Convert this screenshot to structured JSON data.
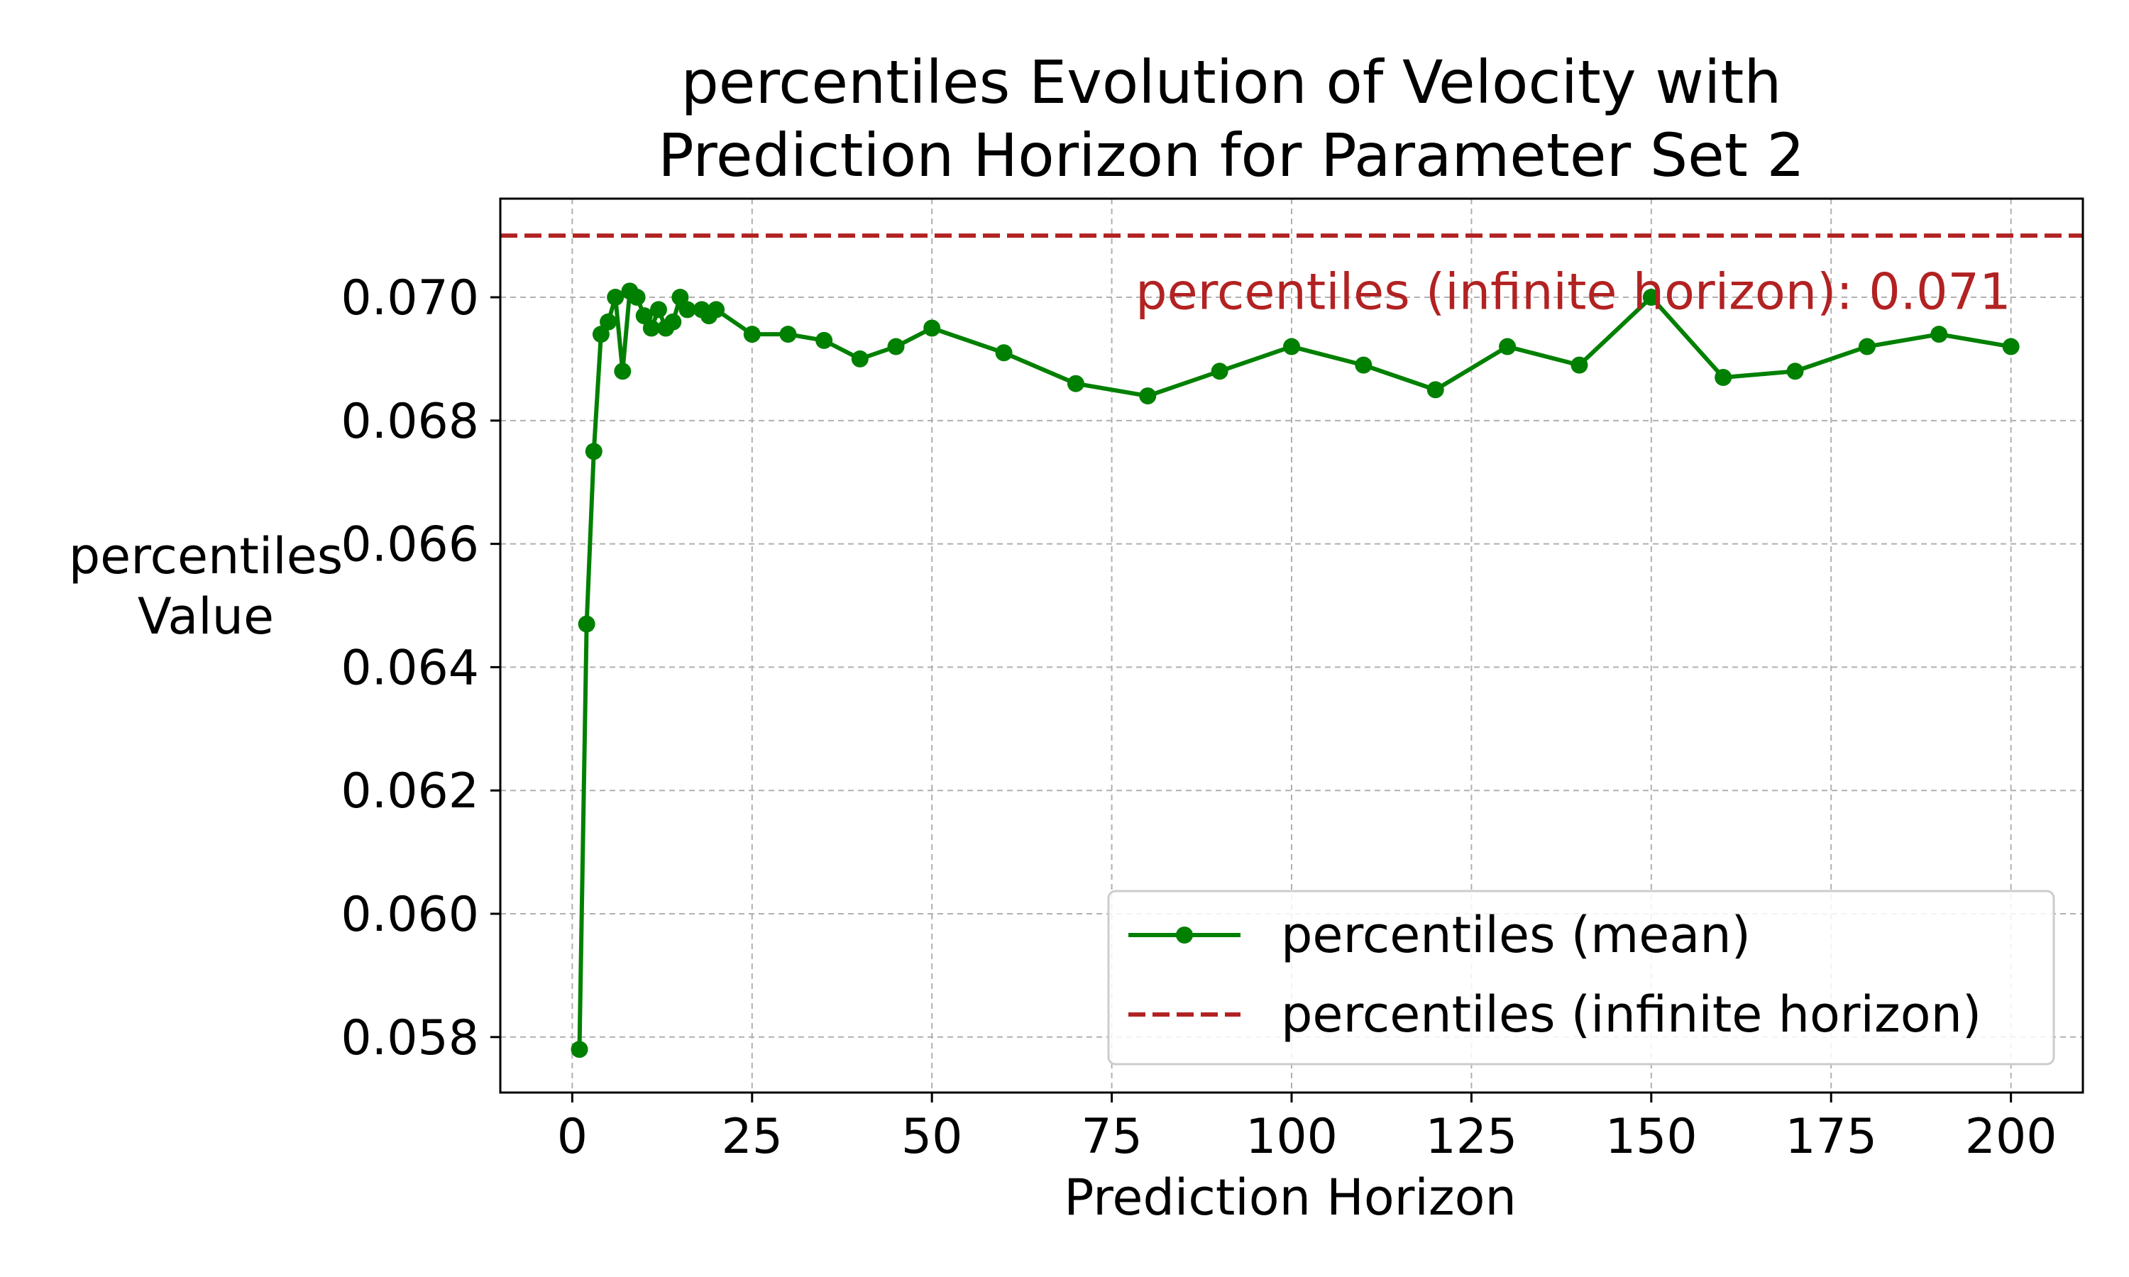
{
  "chart_data": {
    "type": "line",
    "title_lines": [
      "percentiles Evolution of Velocity with",
      "Prediction Horizon for Parameter Set 2"
    ],
    "xlabel": "Prediction Horizon",
    "ylabel_lines": [
      "percentiles",
      "Value"
    ],
    "xlim": [
      -10,
      210
    ],
    "ylim": [
      0.0571,
      0.0716
    ],
    "xticks": [
      0,
      25,
      50,
      75,
      100,
      125,
      150,
      175,
      200
    ],
    "xtick_labels": [
      "0",
      "25",
      "50",
      "75",
      "100",
      "125",
      "150",
      "175",
      "200"
    ],
    "yticks": [
      0.058,
      0.06,
      0.062,
      0.064,
      0.066,
      0.068,
      0.07
    ],
    "ytick_labels": [
      "0.058",
      "0.060",
      "0.062",
      "0.064",
      "0.066",
      "0.068",
      "0.070"
    ],
    "grid": true,
    "legend_position": "lower-right",
    "series": [
      {
        "name": "percentiles (mean)",
        "color": "#008000",
        "style": "solid-with-circle-markers",
        "x": [
          1,
          2,
          3,
          4,
          5,
          6,
          7,
          8,
          9,
          10,
          11,
          12,
          13,
          14,
          15,
          16,
          18,
          19,
          20,
          25,
          30,
          35,
          40,
          45,
          50,
          60,
          70,
          80,
          90,
          100,
          110,
          120,
          130,
          140,
          150,
          160,
          170,
          180,
          190,
          200
        ],
        "y": [
          0.0578,
          0.0647,
          0.0675,
          0.0694,
          0.0696,
          0.07,
          0.0688,
          0.0701,
          0.07,
          0.0697,
          0.0695,
          0.0698,
          0.0695,
          0.0696,
          0.07,
          0.0698,
          0.0698,
          0.0697,
          0.0698,
          0.0694,
          0.0694,
          0.0693,
          0.069,
          0.0692,
          0.0695,
          0.0691,
          0.0686,
          0.0684,
          0.0688,
          0.0692,
          0.0689,
          0.0685,
          0.0692,
          0.0689,
          0.07,
          0.0687,
          0.0688,
          0.0692,
          0.0694,
          0.0692
        ]
      },
      {
        "name": "percentiles (infinite horizon)",
        "color": "#b22222",
        "style": "dashed-horizontal",
        "y_value": 0.071
      }
    ],
    "annotations": [
      {
        "text": "percentiles (infinite horizon): 0.071",
        "color": "#b22222",
        "x": 200,
        "y": 0.0701
      }
    ]
  }
}
